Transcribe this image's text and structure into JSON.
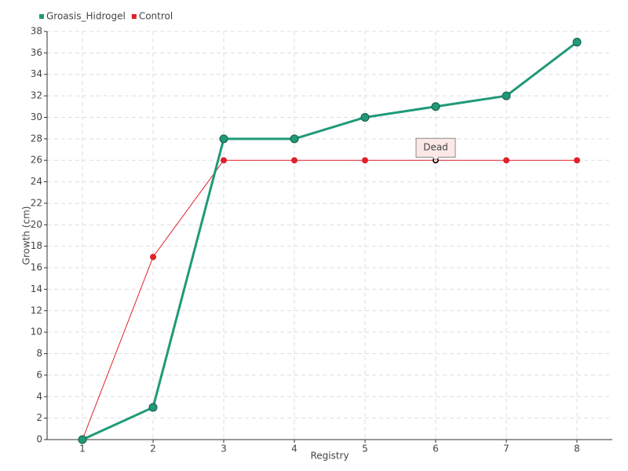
{
  "chart_data": {
    "type": "line",
    "x_label": "Registry",
    "y_label": "Growth (cm)",
    "x": [
      1,
      2,
      3,
      4,
      5,
      6,
      7,
      8
    ],
    "series": [
      {
        "name": "Groasis_Hidrogel",
        "color": "#1f9a78",
        "values": [
          0,
          3,
          28,
          28,
          30,
          31,
          32,
          37
        ]
      },
      {
        "name": "Control",
        "color": "#e0202a",
        "values": [
          0,
          17,
          26,
          26,
          26,
          26,
          26,
          26
        ]
      }
    ],
    "xlim": [
      0.5,
      8.5
    ],
    "xticks": [
      1,
      2,
      3,
      4,
      5,
      6,
      7,
      8
    ],
    "ylim": [
      0,
      38
    ],
    "yticks": [
      0,
      2,
      4,
      6,
      8,
      10,
      12,
      14,
      16,
      18,
      20,
      22,
      24,
      26,
      28,
      30,
      32,
      34,
      36,
      38
    ],
    "grid": true,
    "legend": "top-left",
    "annotations": [
      {
        "text": "Dead",
        "x": 6,
        "y": 26
      }
    ]
  }
}
